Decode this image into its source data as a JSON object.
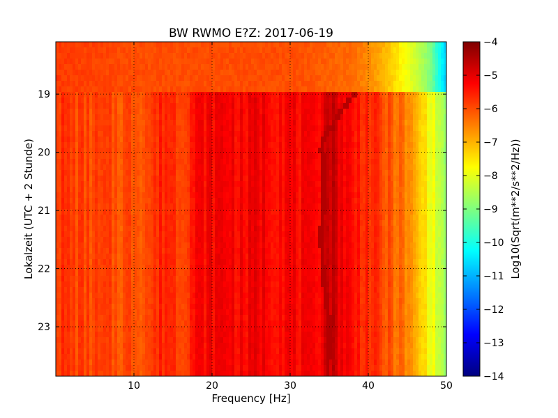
{
  "chart_data": {
    "type": "heatmap",
    "title": "BW RWMO E?Z: 2017-06-19",
    "xlabel": "Frequency [Hz]",
    "ylabel": "Lokalzeit (UTC + 2 Stunde)",
    "xlim": [
      0,
      50
    ],
    "ylim": [
      18.1,
      23.85
    ],
    "y_inverted": true,
    "x_ticks": [
      10,
      20,
      30,
      40,
      50
    ],
    "y_ticks": [
      19,
      20,
      21,
      22,
      23
    ],
    "grid": true,
    "colormap": "jet",
    "colorbar": {
      "label": "Log10(Sqrt(m**2/s**2/Hz))",
      "range": [
        -14,
        -4
      ],
      "ticks": [
        -4,
        -5,
        -6,
        -7,
        -8,
        -9,
        -10,
        -11,
        -12,
        -13,
        -14
      ]
    },
    "data_gap_end_hour": 19.0,
    "frequency_profile": {
      "frequency": [
        0,
        3,
        8,
        12,
        14,
        16,
        18,
        20,
        22,
        24,
        26,
        28,
        30,
        33,
        35,
        38,
        40,
        42,
        44,
        45,
        46,
        47,
        48,
        49,
        50
      ],
      "value": [
        -5.7,
        -5.9,
        -6.0,
        -5.9,
        -5.5,
        -5.8,
        -5.3,
        -5.2,
        -5.1,
        -5.3,
        -5.1,
        -5.2,
        -5.2,
        -5.4,
        -4.6,
        -5.4,
        -5.6,
        -6.0,
        -6.3,
        -6.6,
        -7.0,
        -7.4,
        -7.8,
        -8.3,
        -8.8
      ]
    },
    "pre_gap_profile": {
      "frequency": [
        0,
        10,
        20,
        30,
        38,
        40,
        42,
        44,
        46,
        48,
        49,
        50
      ],
      "value": [
        -5.8,
        -6.0,
        -6.0,
        -6.0,
        -6.3,
        -6.6,
        -7.0,
        -7.6,
        -8.2,
        -9.0,
        -10.0,
        -10.8
      ]
    },
    "narrowband_track": {
      "hour": [
        19.0,
        19.3,
        19.6,
        19.9,
        20.2,
        20.6,
        21.0,
        21.4,
        21.8,
        22.2,
        22.6,
        22.9,
        23.3,
        23.85
      ],
      "frequency": [
        38.3,
        36.4,
        35.0,
        34.0,
        34.3,
        34.4,
        34.2,
        34.0,
        34.1,
        34.3,
        34.7,
        35.0,
        34.9,
        34.8
      ]
    }
  }
}
